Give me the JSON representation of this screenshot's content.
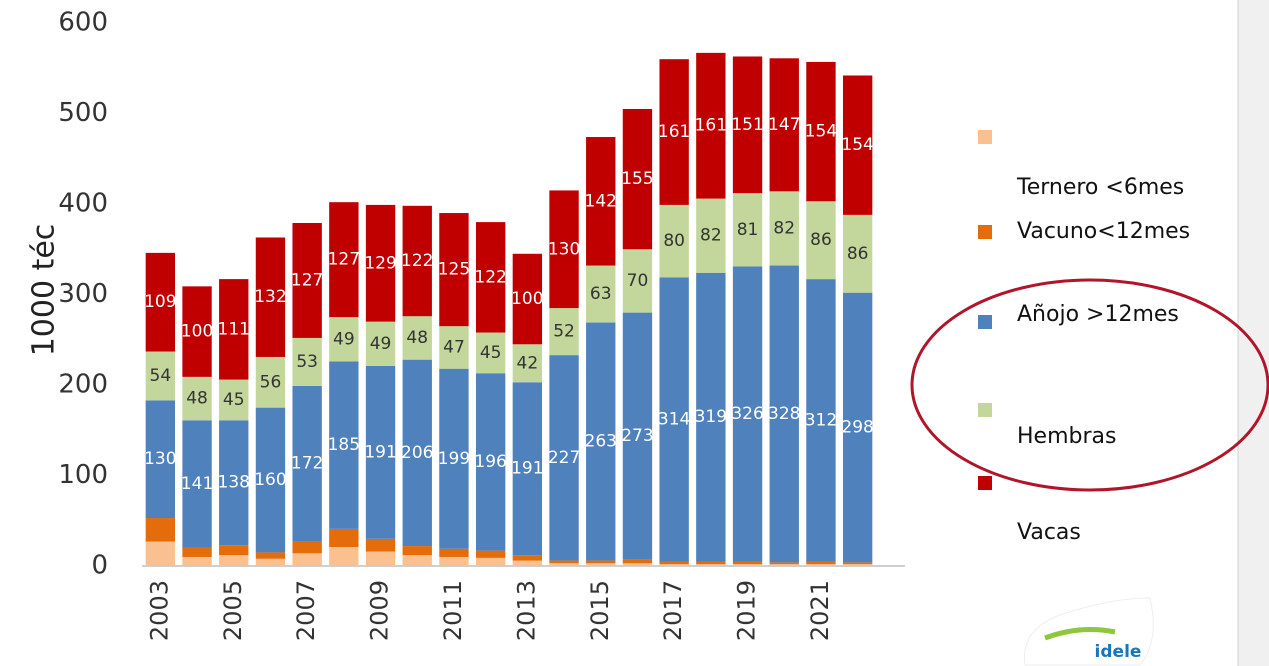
{
  "chart_data": {
    "type": "stacked_bar",
    "y_label": "1000 téc",
    "categories": [
      "2003",
      null,
      "2005",
      null,
      "2007",
      null,
      "2009",
      null,
      "2011",
      null,
      "2013",
      null,
      "2015",
      null,
      "2017",
      null,
      "2019",
      null,
      "2021",
      null
    ],
    "ylim": [
      0,
      600
    ],
    "yticks": [
      0,
      100,
      200,
      300,
      400,
      500,
      600
    ],
    "series": [
      {
        "name": "Ternero <6mes",
        "color": "#fac090",
        "values": [
          27,
          10,
          12,
          8,
          14,
          21,
          16,
          12,
          10,
          9,
          6,
          3,
          3,
          3,
          2,
          2,
          2,
          2,
          2,
          2
        ],
        "labels": false
      },
      {
        "name": "Vacuno<12mes",
        "color": "#e46c0a",
        "values": [
          26,
          10,
          11,
          7,
          13,
          20,
          14,
          10,
          9,
          8,
          6,
          3,
          3,
          4,
          3,
          3,
          3,
          2,
          3,
          2
        ],
        "labels": false
      },
      {
        "name": "Añojo >12mes",
        "color": "#4f81bd",
        "values": [
          130,
          141,
          138,
          160,
          172,
          185,
          191,
          206,
          199,
          196,
          191,
          227,
          263,
          273,
          314,
          319,
          326,
          328,
          312,
          298
        ],
        "labels": true,
        "label_color": "#ffffff"
      },
      {
        "name": "Hembras",
        "color": "#c3d69b",
        "values": [
          54,
          48,
          45,
          56,
          53,
          49,
          49,
          48,
          47,
          45,
          42,
          52,
          63,
          70,
          80,
          82,
          81,
          82,
          86,
          86
        ],
        "labels": true,
        "label_color": "#333333"
      },
      {
        "name": "Vacas",
        "color": "#c00000",
        "values": [
          109,
          100,
          111,
          132,
          127,
          127,
          129,
          122,
          125,
          122,
          100,
          130,
          142,
          155,
          161,
          161,
          151,
          147,
          154,
          154
        ],
        "labels": true,
        "label_color": "#ffffff"
      }
    ],
    "logo": "idele"
  }
}
